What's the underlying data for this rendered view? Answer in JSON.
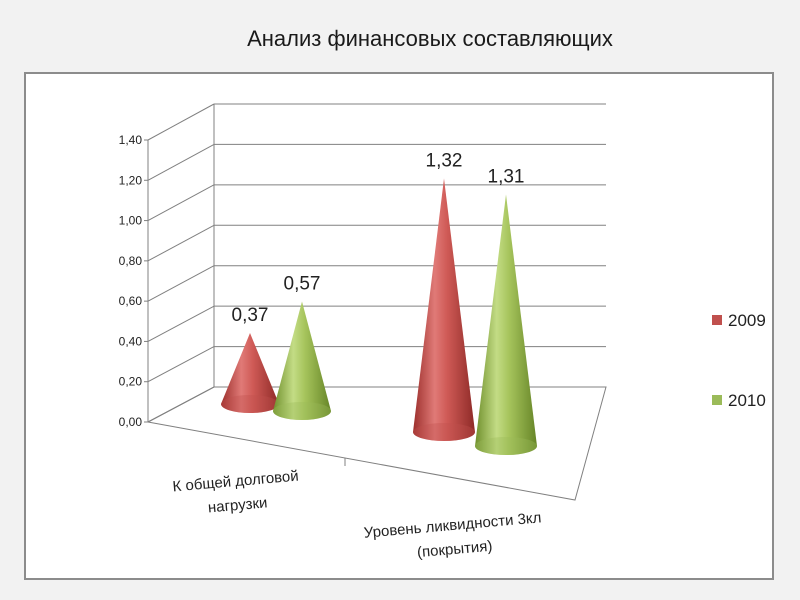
{
  "slide": {
    "title": "Анализ финансовых составляющих"
  },
  "chart_data": {
    "type": "bar",
    "style": "3d-cone",
    "title": "",
    "xlabel": "",
    "ylabel": "",
    "categories": [
      [
        "К общей долговой",
        "нагрузки"
      ],
      [
        "Уровень ликвидности 3кл",
        "(покрытия)"
      ]
    ],
    "series": [
      {
        "name": "2009",
        "values": [
          0.37,
          1.32
        ],
        "labels": [
          "0,37",
          "1,32"
        ],
        "color": "#c0504d"
      },
      {
        "name": "2010",
        "values": [
          0.57,
          1.31
        ],
        "labels": [
          "0,57",
          "1,31"
        ],
        "color": "#9bbb59"
      }
    ],
    "ylim": [
      0,
      1.4
    ],
    "yticks": [
      "0,00",
      "0,20",
      "0,40",
      "0,60",
      "0,80",
      "1,00",
      "1,20",
      "1,40"
    ],
    "grid": true,
    "legend": "right"
  }
}
